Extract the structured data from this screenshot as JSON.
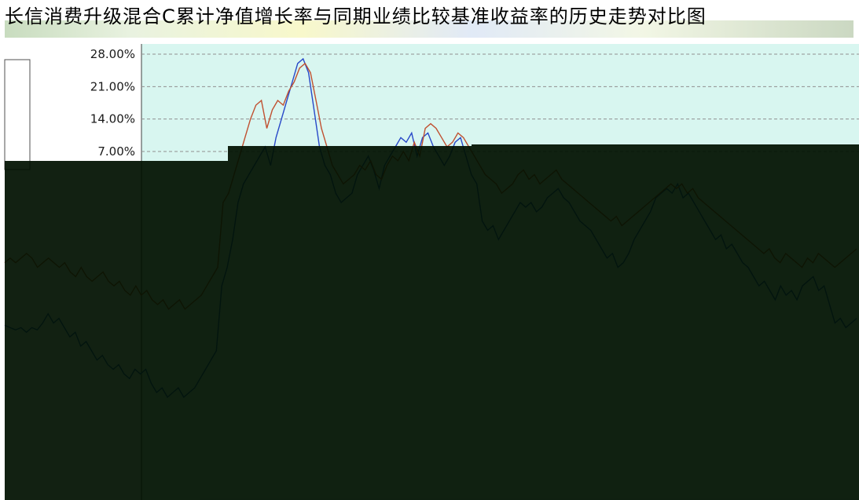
{
  "chart_data": {
    "type": "line",
    "title": "长信消费升级混合C累计净值增长率与同期业绩比较基准收益率的历史走势对比图",
    "ylim": [
      -48,
      30
    ],
    "yticks": [
      "28.00%",
      "21.00%",
      "14.00%",
      "7.00%"
    ],
    "ytick_values": [
      28,
      21,
      14,
      7
    ],
    "grid": true,
    "colors": {
      "plot_bg": "#d8f6f0",
      "page_bg": "#ffffff",
      "dark_block": "#001000",
      "grid": "#909090"
    },
    "series": [
      {
        "color": "#2848c8",
        "values": [
          -30.5,
          -31,
          -31.5,
          -31,
          -32,
          -31,
          -31.5,
          -30,
          -28,
          -30,
          -29,
          -31,
          -33,
          -32,
          -35,
          -34,
          -36,
          -38,
          -37,
          -39,
          -40,
          -39,
          -41,
          -42,
          -40,
          -41,
          -40,
          -43,
          -45,
          -44,
          -46,
          -45,
          -44,
          -46,
          -45,
          -44,
          -42,
          -40,
          -38,
          -36,
          -22,
          -18,
          -12,
          -4,
          0,
          2,
          4,
          6,
          8,
          4,
          10,
          14,
          18,
          22,
          26,
          27,
          24,
          16,
          8,
          4,
          2,
          -2,
          -4,
          -3,
          -2,
          2,
          4,
          6,
          3,
          -1,
          4,
          6,
          8,
          10,
          9,
          11,
          6,
          10,
          11,
          8,
          6,
          4,
          6,
          9,
          10,
          6,
          2,
          0,
          -8,
          -10,
          -9,
          -12,
          -10,
          -8,
          -6,
          -4,
          -5,
          -4,
          -6,
          -5,
          -3,
          -2,
          -1,
          -3,
          -4,
          -6,
          -8,
          -9,
          -10,
          -12,
          -14,
          -16,
          -15,
          -18,
          -17,
          -15,
          -12,
          -10,
          -8,
          -6,
          -3,
          -2,
          -1,
          -2,
          0,
          -3,
          -2,
          -4,
          -6,
          -8,
          -10,
          -12,
          -11,
          -14,
          -13,
          -15,
          -17,
          -18,
          -20,
          -22,
          -21,
          -23,
          -25,
          -22,
          -24,
          -23,
          -25,
          -22,
          -21,
          -20,
          -23,
          -22,
          -26,
          -30,
          -29,
          -31,
          -30,
          -29
        ]
      },
      {
        "color": "#c05030",
        "values": [
          -17,
          -16,
          -17,
          -16,
          -15,
          -16,
          -18,
          -17,
          -16,
          -17,
          -18,
          -17,
          -19,
          -20,
          -18,
          -20,
          -21,
          -20,
          -19,
          -21,
          -22,
          -21,
          -23,
          -24,
          -22,
          -24,
          -23,
          -25,
          -26,
          -25,
          -27,
          -26,
          -25,
          -27,
          -26,
          -25,
          -24,
          -22,
          -20,
          -18,
          -4,
          -2,
          2,
          6,
          10,
          14,
          17,
          18,
          12,
          16,
          18,
          17,
          20,
          22,
          25,
          26,
          24,
          18,
          12,
          8,
          4,
          2,
          0,
          1,
          2,
          4,
          3,
          5,
          2,
          1,
          4,
          6,
          5,
          7,
          5,
          9,
          6,
          12,
          13,
          12,
          10,
          8,
          9,
          11,
          10,
          8,
          6,
          4,
          2,
          1,
          0,
          -2,
          -1,
          0,
          2,
          3,
          1,
          2,
          0,
          1,
          2,
          3,
          1,
          0,
          -1,
          -2,
          -3,
          -4,
          -5,
          -6,
          -7,
          -8,
          -7,
          -9,
          -8,
          -7,
          -6,
          -5,
          -4,
          -3,
          -2,
          -1,
          0,
          -1,
          0,
          -2,
          -1,
          -3,
          -4,
          -5,
          -6,
          -7,
          -8,
          -9,
          -10,
          -11,
          -12,
          -13,
          -14,
          -15,
          -14,
          -16,
          -17,
          -15,
          -16,
          -17,
          -18,
          -16,
          -17,
          -15,
          -16,
          -17,
          -18,
          -17,
          -16,
          -15,
          -14
        ]
      }
    ]
  }
}
